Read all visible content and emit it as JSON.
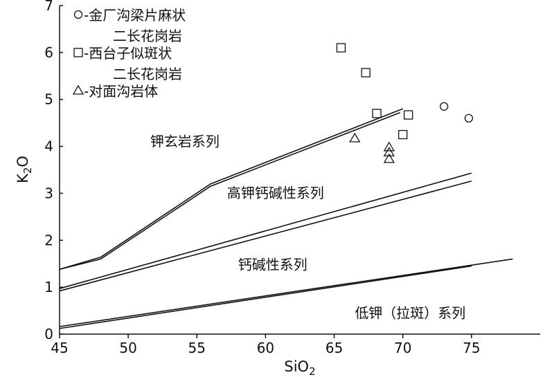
{
  "chart_data": {
    "type": "scatter",
    "xlabel_main": "SiO",
    "xlabel_sub": "2",
    "ylabel_main": "K",
    "ylabel_sub": "2",
    "ylabel_end": "O",
    "xlim": [
      45,
      80
    ],
    "ylim": [
      0,
      7
    ],
    "xticks": [
      "45",
      "50",
      "55",
      "60",
      "65",
      "70",
      "75"
    ],
    "yticks": [
      "0",
      "1",
      "2",
      "3",
      "4",
      "5",
      "6",
      "7"
    ],
    "grid": false,
    "legend_position": "top-left",
    "legend": [
      {
        "marker": "circle",
        "line1": "-金厂沟梁片麻状",
        "line2": "二长花岗岩"
      },
      {
        "marker": "square",
        "line1": "-西台子似斑状",
        "line2": "二长花岗岩"
      },
      {
        "marker": "triangle",
        "line1": "-对面沟岩体",
        "line2": ""
      }
    ],
    "series": [
      {
        "marker": "circle",
        "points": [
          [
            73,
            4.85
          ],
          [
            74.8,
            4.6
          ]
        ]
      },
      {
        "marker": "square",
        "points": [
          [
            65.5,
            6.1
          ],
          [
            67.3,
            5.57
          ],
          [
            68.1,
            4.7
          ],
          [
            70.4,
            4.67
          ],
          [
            70,
            4.25
          ]
        ]
      },
      {
        "marker": "triangle",
        "points": [
          [
            66.5,
            4.17
          ],
          [
            69,
            3.98
          ],
          [
            69,
            3.87
          ],
          [
            69,
            3.73
          ]
        ]
      }
    ],
    "boundaries": [
      [
        [
          [
            45,
            1.38
          ],
          [
            48,
            1.6
          ],
          [
            56,
            3.15
          ],
          [
            69.8,
            4.72
          ]
        ],
        [
          [
            45,
            1.38
          ],
          [
            48,
            1.64
          ],
          [
            56,
            3.2
          ],
          [
            70,
            4.8
          ]
        ]
      ],
      [
        [
          [
            45,
            0.92
          ],
          [
            75,
            3.26
          ]
        ],
        [
          [
            45,
            0.97
          ],
          [
            75,
            3.43
          ]
        ]
      ],
      [
        [
          [
            45,
            0.12
          ],
          [
            75,
            1.45
          ]
        ],
        [
          [
            45,
            0.16
          ],
          [
            78,
            1.6
          ]
        ]
      ]
    ],
    "region_labels": [
      {
        "text": "钾玄岩系列",
        "x": 51.6,
        "y": 4.0
      },
      {
        "text": "高钾钙碱性系列",
        "x": 57.2,
        "y": 2.9
      },
      {
        "text": "钙碱性系列",
        "x": 58,
        "y": 1.38
      },
      {
        "text": "低钾（拉斑）系列",
        "x": 66.5,
        "y": 0.35
      }
    ]
  }
}
